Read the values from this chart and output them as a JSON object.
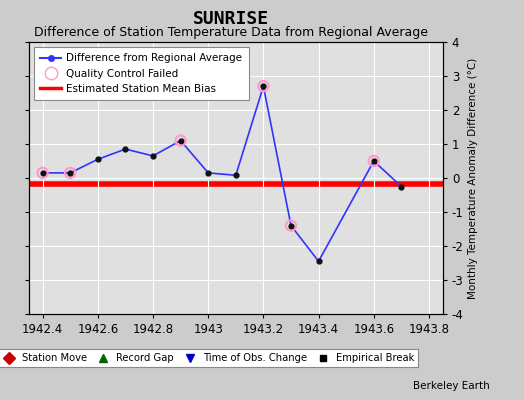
{
  "title": "SUNRISE",
  "subtitle": "Difference of Station Temperature Data from Regional Average",
  "ylabel_right": "Monthly Temperature Anomaly Difference (°C)",
  "watermark": "Berkeley Earth",
  "xlim": [
    1942.35,
    1943.85
  ],
  "ylim": [
    -4,
    4
  ],
  "yticks": [
    -4,
    -3,
    -2,
    -1,
    0,
    1,
    2,
    3,
    4
  ],
  "xticks": [
    1942.4,
    1942.6,
    1942.8,
    1943.0,
    1943.2,
    1943.4,
    1943.6,
    1943.8
  ],
  "xtick_labels": [
    "1942.4",
    "1942.6",
    "1942.8",
    "1943",
    "1943.2",
    "1943.4",
    "1943.6",
    "1943.8"
  ],
  "bias_y": -0.18,
  "line_x": [
    1942.4,
    1942.5,
    1942.6,
    1942.7,
    1942.8,
    1942.9,
    1943.0,
    1943.1,
    1943.2,
    1943.3,
    1943.4,
    1943.6,
    1943.7
  ],
  "line_y": [
    0.15,
    0.15,
    0.55,
    0.85,
    0.65,
    1.1,
    0.15,
    0.08,
    2.7,
    -1.4,
    -2.45,
    0.5,
    -0.25
  ],
  "qc_x": [
    1942.4,
    1942.5,
    1942.9,
    1943.2,
    1943.3,
    1943.6
  ],
  "qc_y": [
    0.15,
    0.15,
    1.1,
    2.7,
    -1.4,
    0.5
  ],
  "line_color": "#3333ff",
  "bias_color": "#ff0000",
  "qc_color": "#ff99cc",
  "bg_color": "#cccccc",
  "plot_bg": "#e0e0e0",
  "grid_color": "#ffffff",
  "title_fontsize": 13,
  "subtitle_fontsize": 9,
  "tick_fontsize": 8.5,
  "ylabel_fontsize": 7.5
}
